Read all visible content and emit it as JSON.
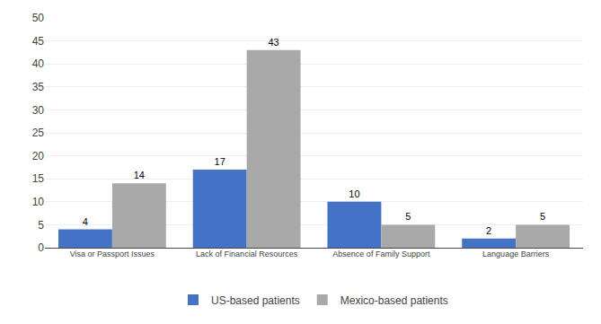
{
  "chart_data": {
    "type": "bar",
    "categories": [
      "Visa or Passport Issues",
      "Lack of Financial Resources",
      "Absence of Family Support",
      "Language Barriers"
    ],
    "series": [
      {
        "name": "US-based patients",
        "color": "#4472C4",
        "values": [
          4,
          17,
          10,
          2
        ]
      },
      {
        "name": "Mexico-based patients",
        "color": "#A9A9A9",
        "values": [
          14,
          43,
          5,
          5
        ]
      }
    ],
    "ylim": [
      0,
      50
    ],
    "yticks": [
      0,
      5,
      10,
      15,
      20,
      25,
      30,
      35,
      40,
      45,
      50
    ],
    "grid": true,
    "data_labels": true,
    "legend": "bottom"
  }
}
